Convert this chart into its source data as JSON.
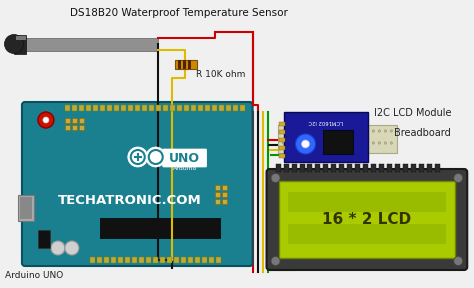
{
  "title": "DS18B20 Waterproof Temperature Sensor",
  "label_arduino": "Arduino UNO",
  "label_r": "R 10K ohm",
  "label_i2c": "I2C LCD Module",
  "label_breadboard": "Breadboard",
  "label_lcd": "16 * 2 LCD",
  "bg_color": "#f0f0f0",
  "arduino_teal": "#1a8090",
  "arduino_dark": "#0a5060",
  "lcd_outer": "#444444",
  "lcd_screen": "#aacb00",
  "i2c_blue": "#1a1a99",
  "bb_tan": "#d8d8b8",
  "wire_red": "#cc0000",
  "wire_black": "#111111",
  "wire_yellow": "#ddbb00",
  "wire_green": "#009900",
  "resistor": "#cc8800",
  "sensor_dark": "#252525",
  "sensor_gray": "#888888"
}
